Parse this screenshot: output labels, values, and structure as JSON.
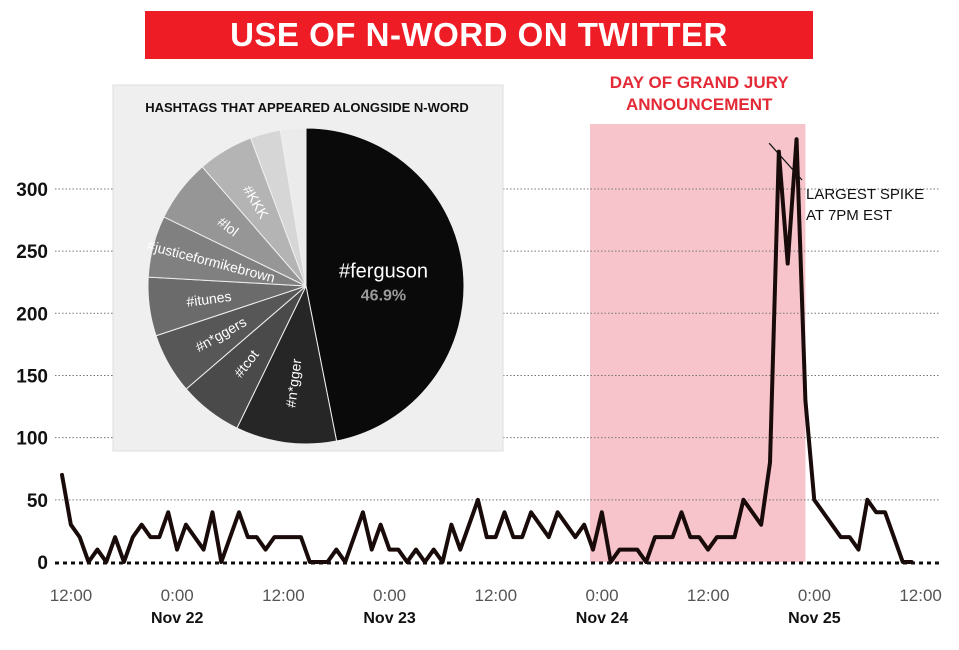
{
  "chart_data": [
    {
      "type": "line",
      "title": "USE OF N-WORD ON TWITTER",
      "xlabel": "",
      "ylabel": "",
      "ylim": [
        0,
        340
      ],
      "y_ticks": [
        0,
        50,
        100,
        150,
        200,
        250,
        300
      ],
      "grid": "horizontal dotted",
      "x_tick_labels": [
        {
          "time": "12:00",
          "date": ""
        },
        {
          "time": "0:00",
          "date": "Nov 22"
        },
        {
          "time": "12:00",
          "date": ""
        },
        {
          "time": "0:00",
          "date": "Nov 23"
        },
        {
          "time": "12:00",
          "date": ""
        },
        {
          "time": "0:00",
          "date": "Nov 24"
        },
        {
          "time": "12:00",
          "date": ""
        },
        {
          "time": "0:00",
          "date": "Nov 25"
        },
        {
          "time": "12:00",
          "date": ""
        }
      ],
      "x_unit_note": "x values are hours since first 12:00 tick (Nov 21 12:00)",
      "series": [
        {
          "name": "",
          "color": "#1a0b0b",
          "x": [
            0,
            1,
            2,
            3,
            4,
            5,
            6,
            7,
            8,
            9,
            10,
            11,
            12,
            13,
            14,
            15,
            16,
            17,
            18,
            19,
            20,
            21,
            22,
            23,
            24,
            25,
            26,
            27,
            28,
            29,
            30,
            31,
            32,
            33,
            34,
            35,
            36,
            37,
            38,
            39,
            40,
            41,
            42,
            43,
            44,
            45,
            46,
            47,
            48,
            49,
            50,
            51,
            52,
            53,
            54,
            55,
            56,
            57,
            58,
            59,
            60,
            61,
            62,
            63,
            64,
            65,
            66,
            67,
            68,
            69,
            70,
            71,
            72,
            73,
            74,
            75,
            76,
            77,
            78,
            79,
            80,
            81,
            82,
            83,
            84,
            85,
            86,
            87,
            88,
            89,
            90,
            91,
            92,
            93,
            94,
            95,
            96
          ],
          "y": [
            70,
            30,
            20,
            0,
            10,
            0,
            20,
            0,
            20,
            30,
            20,
            20,
            40,
            10,
            30,
            20,
            10,
            40,
            0,
            20,
            40,
            20,
            20,
            10,
            20,
            20,
            20,
            20,
            0,
            0,
            0,
            10,
            0,
            20,
            40,
            10,
            30,
            10,
            10,
            0,
            10,
            0,
            10,
            0,
            30,
            10,
            30,
            50,
            20,
            20,
            40,
            20,
            20,
            40,
            30,
            20,
            40,
            30,
            20,
            30,
            10,
            40,
            0,
            10,
            10,
            10,
            0,
            20,
            20,
            20,
            40,
            20,
            20,
            10,
            20,
            20,
            20,
            50,
            40,
            30,
            80,
            330,
            240,
            340,
            130,
            50,
            40,
            30,
            20,
            20,
            10,
            50,
            40,
            40,
            20,
            0,
            0
          ]
        }
      ],
      "highlight": {
        "x_start": 60,
        "x_end": 84,
        "color": "#f6c4ca",
        "label": "DAY OF GRAND JURY ANNOUNCEMENT"
      },
      "annotations": [
        {
          "text_lines": [
            "LARGEST SPIKE",
            "AT 7PM EST"
          ],
          "x": 79,
          "y": 340
        }
      ]
    },
    {
      "type": "pie",
      "title": "HASHTAGS THAT APPEARED ALONGSIDE N-WORD",
      "slices": [
        {
          "label": "#ferguson",
          "value": 46.9,
          "value_label": "46.9%",
          "color": "#0a0a0a"
        },
        {
          "label": "#n*gger",
          "value": 10.3,
          "color": "#262626"
        },
        {
          "label": "#tcot",
          "value": 6.5,
          "color": "#4a4a4a"
        },
        {
          "label": "#n*ggers",
          "value": 6.2,
          "color": "#575757"
        },
        {
          "label": "#itunes",
          "value": 6.0,
          "color": "#6b6b6b"
        },
        {
          "label": "#justiceformikebrown",
          "value": 6.3,
          "color": "#808080"
        },
        {
          "label": "#lol",
          "value": 6.4,
          "color": "#969696"
        },
        {
          "label": "#KKK",
          "value": 5.7,
          "color": "#b4b4b4"
        },
        {
          "label": "",
          "value": 3.1,
          "color": "#d6d6d6"
        },
        {
          "label": "",
          "value": 2.6,
          "color": "#ebebeb"
        }
      ]
    }
  ]
}
